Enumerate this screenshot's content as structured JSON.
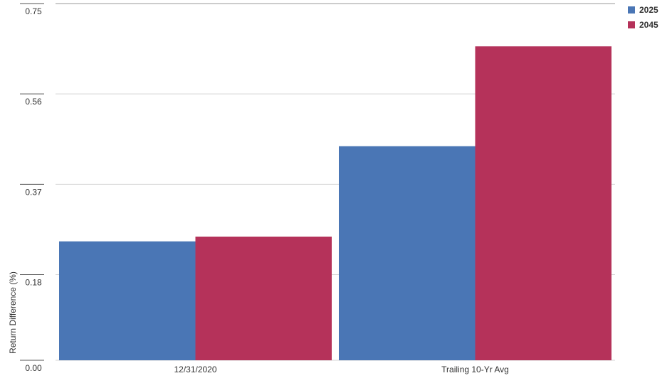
{
  "chart_data": {
    "type": "bar",
    "y_label": "Return Difference (%)",
    "categories": [
      "12/31/2020",
      "Trailing 10-Yr Avg"
    ],
    "series": [
      {
        "name": "2025",
        "color": "#4a76b5",
        "values": [
          0.25,
          0.45
        ]
      },
      {
        "name": "2045",
        "color": "#b5325a",
        "values": [
          0.26,
          0.66
        ]
      }
    ],
    "ylim": [
      0,
      0.75
    ],
    "yticks": [
      {
        "value": 0,
        "label": "0.00"
      },
      0.18,
      0.37,
      0.56,
      0.75
    ],
    "grid": true,
    "legend": "top-right"
  }
}
